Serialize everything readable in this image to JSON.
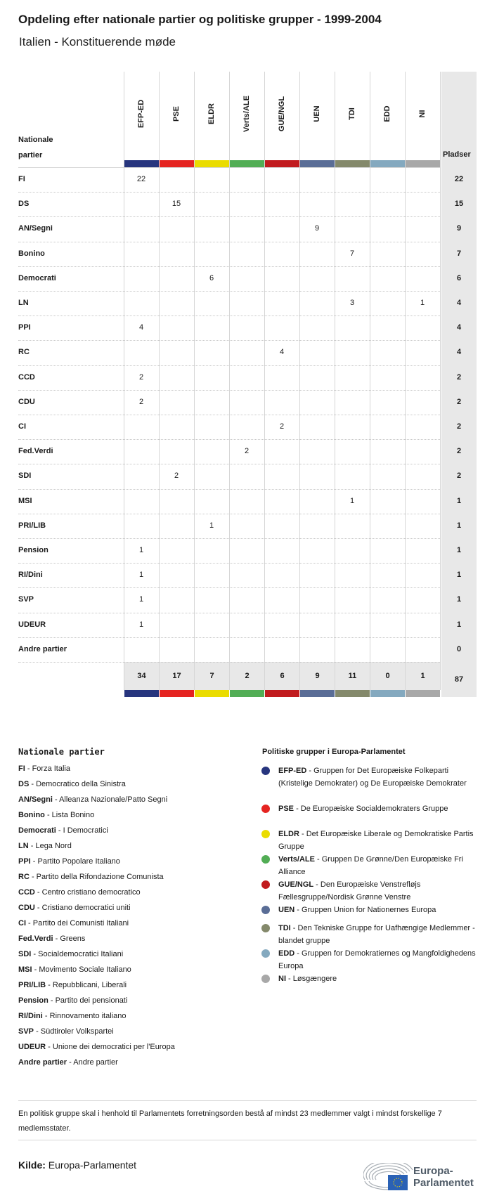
{
  "title": "Opdeling efter nationale partier og politiske grupper - 1999-2004",
  "subtitle": "Italien - Konstituerende møde",
  "chart_data": {
    "type": "table",
    "row_header": "Nationale partier",
    "total_header": "Pladser",
    "columns": [
      {
        "name": "EFP-ED",
        "color": "#27357e"
      },
      {
        "name": "PSE",
        "color": "#e52421"
      },
      {
        "name": "ELDR",
        "color": "#eadc00"
      },
      {
        "name": "Verts/ALE",
        "color": "#52ad55"
      },
      {
        "name": "GUE/NGL",
        "color": "#c11b1e"
      },
      {
        "name": "UEN",
        "color": "#5a6d96"
      },
      {
        "name": "TDI",
        "color": "#84896b"
      },
      {
        "name": "EDD",
        "color": "#84a9bf"
      },
      {
        "name": "NI",
        "color": "#a8a8a8"
      }
    ],
    "rows": [
      {
        "party": "FI",
        "values": [
          22,
          null,
          null,
          null,
          null,
          null,
          null,
          null,
          null
        ],
        "total": 22
      },
      {
        "party": "DS",
        "values": [
          null,
          15,
          null,
          null,
          null,
          null,
          null,
          null,
          null
        ],
        "total": 15
      },
      {
        "party": "AN/Segni",
        "values": [
          null,
          null,
          null,
          null,
          null,
          9,
          null,
          null,
          null
        ],
        "total": 9
      },
      {
        "party": "Bonino",
        "values": [
          null,
          null,
          null,
          null,
          null,
          null,
          7,
          null,
          null
        ],
        "total": 7
      },
      {
        "party": "Democrati",
        "values": [
          null,
          null,
          6,
          null,
          null,
          null,
          null,
          null,
          null
        ],
        "total": 6
      },
      {
        "party": "LN",
        "values": [
          null,
          null,
          null,
          null,
          null,
          null,
          3,
          null,
          1
        ],
        "total": 4
      },
      {
        "party": "PPI",
        "values": [
          4,
          null,
          null,
          null,
          null,
          null,
          null,
          null,
          null
        ],
        "total": 4
      },
      {
        "party": "RC",
        "values": [
          null,
          null,
          null,
          null,
          4,
          null,
          null,
          null,
          null
        ],
        "total": 4
      },
      {
        "party": "CCD",
        "values": [
          2,
          null,
          null,
          null,
          null,
          null,
          null,
          null,
          null
        ],
        "total": 2
      },
      {
        "party": "CDU",
        "values": [
          2,
          null,
          null,
          null,
          null,
          null,
          null,
          null,
          null
        ],
        "total": 2
      },
      {
        "party": "CI",
        "values": [
          null,
          null,
          null,
          null,
          2,
          null,
          null,
          null,
          null
        ],
        "total": 2
      },
      {
        "party": "Fed.Verdi",
        "values": [
          null,
          null,
          null,
          2,
          null,
          null,
          null,
          null,
          null
        ],
        "total": 2
      },
      {
        "party": "SDI",
        "values": [
          null,
          2,
          null,
          null,
          null,
          null,
          null,
          null,
          null
        ],
        "total": 2
      },
      {
        "party": "MSI",
        "values": [
          null,
          null,
          null,
          null,
          null,
          null,
          1,
          null,
          null
        ],
        "total": 1
      },
      {
        "party": "PRI/LIB",
        "values": [
          null,
          null,
          1,
          null,
          null,
          null,
          null,
          null,
          null
        ],
        "total": 1
      },
      {
        "party": "Pension",
        "values": [
          1,
          null,
          null,
          null,
          null,
          null,
          null,
          null,
          null
        ],
        "total": 1
      },
      {
        "party": "RI/Dini",
        "values": [
          1,
          null,
          null,
          null,
          null,
          null,
          null,
          null,
          null
        ],
        "total": 1
      },
      {
        "party": "SVP",
        "values": [
          1,
          null,
          null,
          null,
          null,
          null,
          null,
          null,
          null
        ],
        "total": 1
      },
      {
        "party": "UDEUR",
        "values": [
          1,
          null,
          null,
          null,
          null,
          null,
          null,
          null,
          null
        ],
        "total": 1
      },
      {
        "party": "Andre partier",
        "values": [
          null,
          null,
          null,
          null,
          null,
          null,
          null,
          null,
          null
        ],
        "total": 0
      }
    ],
    "column_totals": [
      34,
      17,
      7,
      2,
      6,
      9,
      11,
      0,
      1
    ],
    "grand_total": 87
  },
  "legend": {
    "national_heading": "Nationale partier",
    "national": [
      {
        "abbr": "FI",
        "name": "Forza Italia"
      },
      {
        "abbr": "DS",
        "name": "Democratico della Sinistra"
      },
      {
        "abbr": "AN/Segni",
        "name": "Alleanza Nazionale/Patto Segni"
      },
      {
        "abbr": "Bonino",
        "name": "Lista Bonino"
      },
      {
        "abbr": "Democrati",
        "name": "I Democratici"
      },
      {
        "abbr": "LN",
        "name": "Lega Nord"
      },
      {
        "abbr": "PPI",
        "name": "Partito Popolare Italiano"
      },
      {
        "abbr": "RC",
        "name": "Partito della Rifondazione Comunista"
      },
      {
        "abbr": "CCD",
        "name": "Centro cristiano democratico"
      },
      {
        "abbr": "CDU",
        "name": "Cristiano democratici uniti"
      },
      {
        "abbr": "CI",
        "name": "Partito dei Comunisti Italiani"
      },
      {
        "abbr": "Fed.Verdi",
        "name": "Greens"
      },
      {
        "abbr": "SDI",
        "name": "Socialdemocratici Italiani"
      },
      {
        "abbr": "MSI",
        "name": "Movimento Sociale Italiano"
      },
      {
        "abbr": "PRI/LIB",
        "name": "Repubblicani, Liberali"
      },
      {
        "abbr": "Pension",
        "name": "Partito dei pensionati"
      },
      {
        "abbr": "RI/Dini",
        "name": "Rinnovamento italiano"
      },
      {
        "abbr": "SVP",
        "name": "Südtiroler Volkspartei"
      },
      {
        "abbr": "UDEUR",
        "name": "Unione dei democratici per l'Europa"
      },
      {
        "abbr": "Andre partier",
        "name": "Andre partier"
      }
    ],
    "groups_heading": "Politiske grupper i Europa-Parlamentet",
    "groups": [
      {
        "abbr": "EFP-ED",
        "name": "Gruppen for Det Europæiske Folkeparti (Kristelige Demokrater) og De Europæiske Demokrater",
        "color": "#27357e"
      },
      {
        "abbr": "PSE",
        "name": "De Europæiske Socialdemokraters Gruppe",
        "color": "#e52421"
      },
      {
        "abbr": "ELDR",
        "name": "Det Europæiske Liberale og Demokratiske Partis Gruppe",
        "color": "#eadc00"
      },
      {
        "abbr": "Verts/ALE",
        "name": "Gruppen De Grønne/Den Europæiske Fri Alliance",
        "color": "#52ad55"
      },
      {
        "abbr": "GUE/NGL",
        "name": "Den Europæiske Venstrefløjs Fællesgruppe/Nordisk Grønne Venstre",
        "color": "#c11b1e"
      },
      {
        "abbr": "UEN",
        "name": "Gruppen Union for Nationernes Europa",
        "color": "#5a6d96"
      },
      {
        "abbr": "TDI",
        "name": "Den Tekniske Gruppe for Uafhængige Medlemmer - blandet gruppe",
        "color": "#84896b"
      },
      {
        "abbr": "EDD",
        "name": "Gruppen for Demokratiernes og Mangfoldighedens Europa",
        "color": "#84a9bf"
      },
      {
        "abbr": "NI",
        "name": "Løsgængere",
        "color": "#a8a8a8"
      }
    ]
  },
  "footer": {
    "note": "En politisk gruppe skal i henhold til Parlamentets forretningsorden bestå af mindst 23 medlemmer valgt i mindst forskellige 7 medlemsstater.",
    "source_label": "Kilde:",
    "source": "Europa-Parlamentet",
    "logo_text": "Europa-Parlamentet"
  }
}
